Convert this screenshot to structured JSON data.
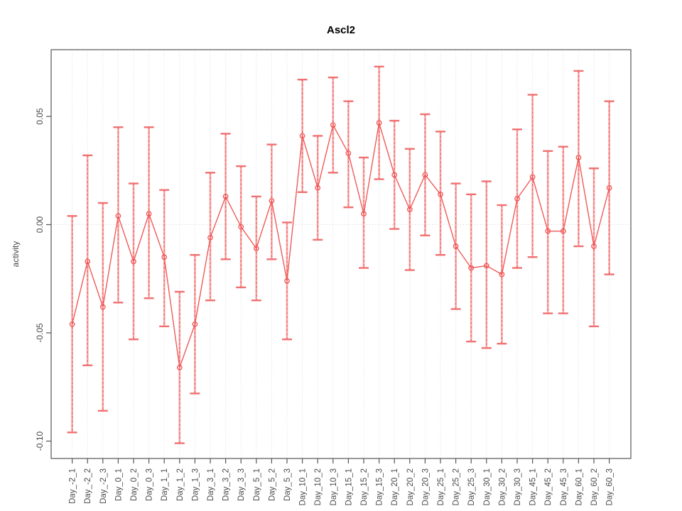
{
  "chart_data": {
    "type": "line",
    "title": "Ascl2",
    "ylabel": "activity",
    "xlabel": "",
    "legend": "none",
    "grid": "vertical-dotted-per-category-plus-zero-line",
    "categories": [
      "Day_-2_1",
      "Day_-2_2",
      "Day_-2_3",
      "Day_0_1",
      "Day_0_2",
      "Day_0_3",
      "Day_1_1",
      "Day_1_2",
      "Day_1_3",
      "Day_3_1",
      "Day_3_2",
      "Day_3_3",
      "Day_5_1",
      "Day_5_2",
      "Day_5_3",
      "Day_10_1",
      "Day_10_2",
      "Day_10_3",
      "Day_15_1",
      "Day_15_2",
      "Day_15_3",
      "Day_20_1",
      "Day_20_2",
      "Day_20_3",
      "Day_25_1",
      "Day_25_2",
      "Day_25_3",
      "Day_30_1",
      "Day_30_2",
      "Day_30_3",
      "Day_45_1",
      "Day_45_2",
      "Day_45_3",
      "Day_60_1",
      "Day_60_2",
      "Day_60_3"
    ],
    "series": [
      {
        "name": "activity",
        "marker": "open-circle",
        "values": [
          -0.046,
          -0.017,
          -0.038,
          0.004,
          -0.017,
          0.005,
          -0.015,
          -0.066,
          -0.046,
          -0.006,
          0.013,
          -0.001,
          -0.011,
          0.011,
          -0.026,
          0.041,
          0.017,
          0.046,
          0.033,
          0.005,
          0.047,
          0.023,
          0.007,
          0.023,
          0.014,
          -0.01,
          -0.02,
          -0.019,
          -0.023,
          0.012,
          0.022,
          -0.003,
          -0.003,
          0.031,
          -0.01,
          0.017
        ],
        "upper": [
          0.004,
          0.032,
          0.01,
          0.045,
          0.019,
          0.045,
          0.016,
          -0.031,
          -0.014,
          0.024,
          0.042,
          0.027,
          0.013,
          0.037,
          0.001,
          0.067,
          0.041,
          0.068,
          0.057,
          0.031,
          0.073,
          0.048,
          0.035,
          0.051,
          0.043,
          0.019,
          0.014,
          0.02,
          0.009,
          0.044,
          0.06,
          0.034,
          0.036,
          0.071,
          0.026,
          0.057
        ],
        "lower": [
          -0.096,
          -0.065,
          -0.086,
          -0.036,
          -0.053,
          -0.034,
          -0.047,
          -0.101,
          -0.078,
          -0.035,
          -0.016,
          -0.029,
          -0.035,
          -0.016,
          -0.053,
          0.015,
          -0.007,
          0.024,
          0.008,
          -0.02,
          0.021,
          -0.002,
          -0.021,
          -0.005,
          -0.014,
          -0.039,
          -0.054,
          -0.057,
          -0.055,
          -0.02,
          -0.015,
          -0.041,
          -0.041,
          -0.01,
          -0.047,
          -0.023
        ]
      }
    ],
    "yticks": {
      "values": [
        0.05,
        0.0,
        -0.05,
        -0.1
      ],
      "labels": [
        "0.05",
        "0.00",
        "-0.05",
        "-0.10"
      ]
    },
    "ylim": [
      -0.108,
      0.081
    ],
    "zero_line": 0,
    "colors": {
      "point": "#ee5252",
      "line": "#ef5a5a",
      "error_bar": "#f8a8a8",
      "error_dash": "#ee5252",
      "error_cap": "#f07070",
      "grid": "#dcdcdc",
      "zero": "#cfcfcf",
      "axis": "#555555",
      "tick_text": "#4a4a4a",
      "title": "#000000"
    }
  }
}
